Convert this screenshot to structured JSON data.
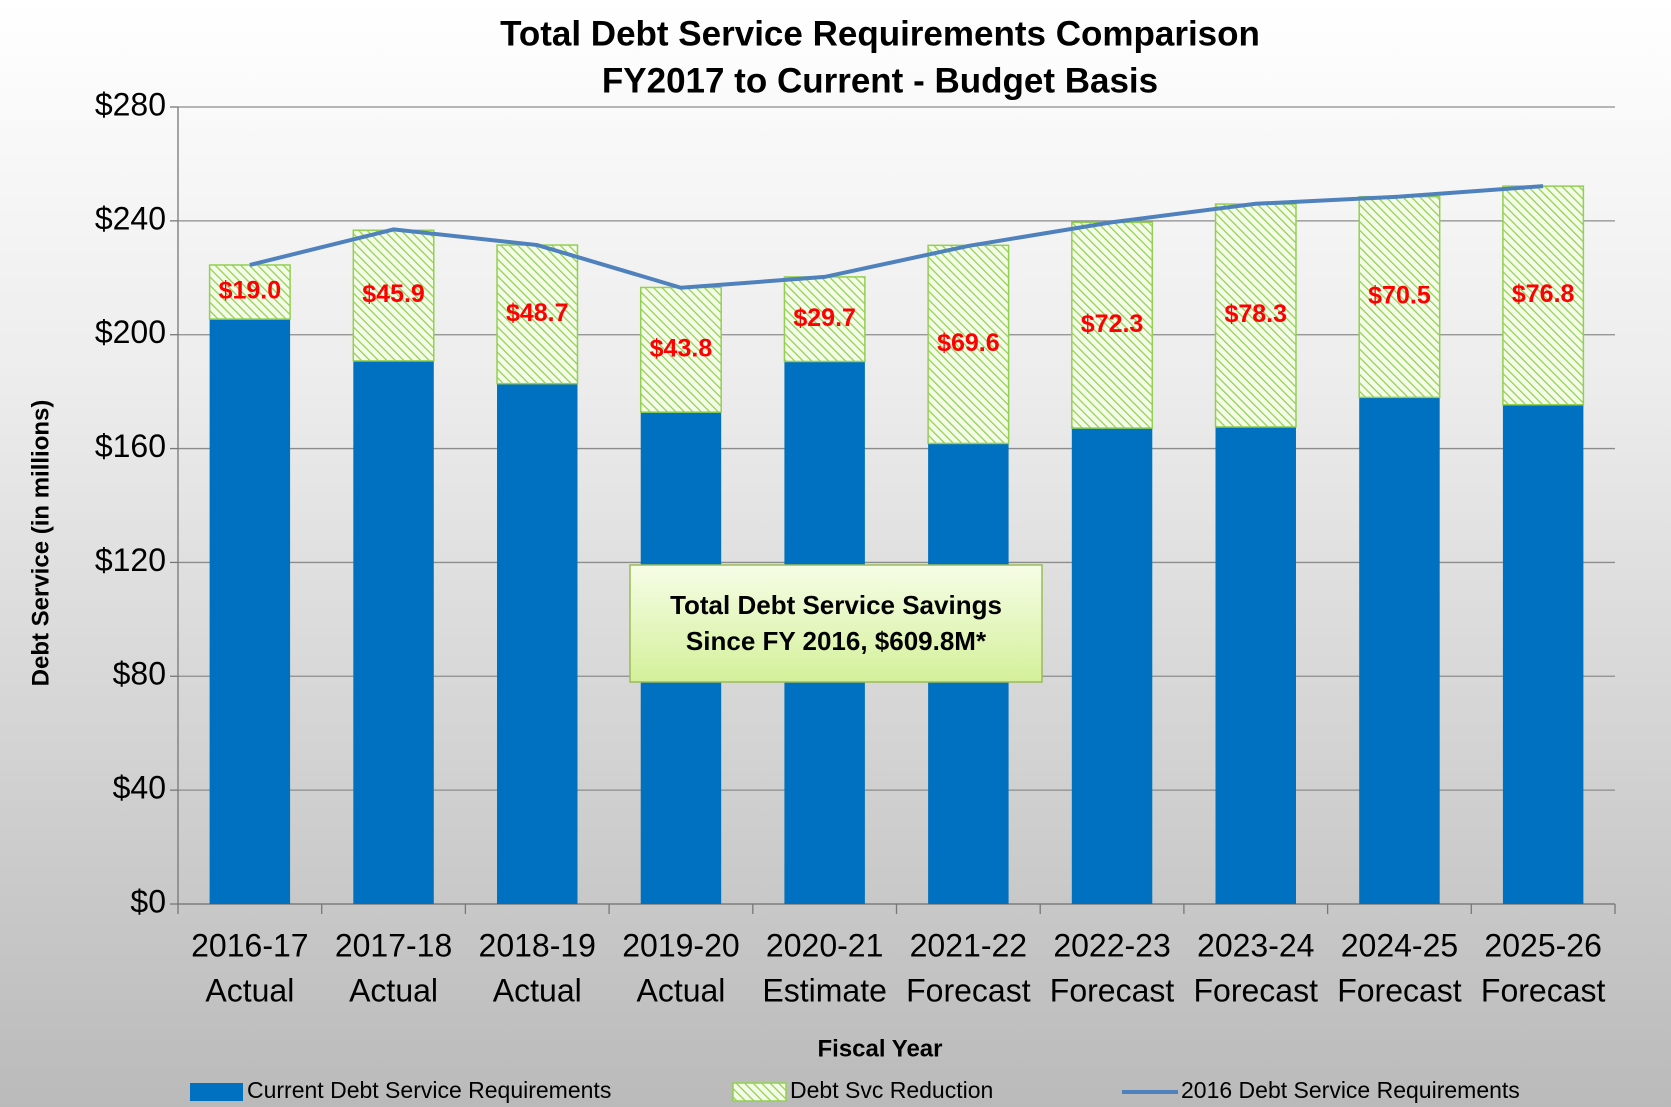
{
  "chart_data": {
    "type": "stacked-bar-line",
    "title": [
      "Total Debt Service Requirements Comparison",
      "FY2017 to Current - Budget Basis"
    ],
    "x_label": "Fiscal Year",
    "y_label": "Debt Service (in millions)",
    "categories": [
      [
        "2016-17",
        "Actual"
      ],
      [
        "2017-18",
        "Actual"
      ],
      [
        "2018-19",
        "Actual"
      ],
      [
        "2019-20",
        "Actual"
      ],
      [
        "2020-21",
        "Estimate"
      ],
      [
        "2021-22",
        "Forecast"
      ],
      [
        "2022-23",
        "Forecast"
      ],
      [
        "2023-24",
        "Forecast"
      ],
      [
        "2024-25",
        "Forecast"
      ],
      [
        "2025-26",
        "Forecast"
      ]
    ],
    "series": [
      {
        "name": "Current Debt Service Requirements",
        "color": "#0070c0",
        "kind": "bar",
        "values": [
          205.5,
          190.8,
          182.8,
          172.8,
          190.6,
          161.8,
          167.2,
          167.6,
          178,
          175.4
        ]
      },
      {
        "name": "Debt Svc Reduction",
        "color": "#92d050",
        "kind": "stack",
        "values": [
          19.0,
          45.9,
          48.7,
          43.8,
          29.7,
          69.6,
          72.3,
          78.3,
          70.5,
          76.8
        ],
        "value_labels": [
          "$19.0",
          "$45.9",
          "$48.7",
          "$43.8",
          "$29.7",
          "$69.6",
          "$72.3",
          "$78.3",
          "$70.5",
          "$76.8"
        ]
      },
      {
        "name": "2016 Debt Service Requirements",
        "color": "#4f81bd",
        "kind": "line",
        "values": [
          224.5,
          237,
          231.5,
          216.5,
          220.3,
          231.2,
          239.5,
          246,
          248.5,
          252.2
        ]
      }
    ],
    "annotation": [
      "Total Debt Service Savings",
      "Since FY 2016, $609.8M*"
    ],
    "ylim": [
      0,
      280
    ],
    "yticks": [
      {
        "value": 0,
        "label": "$0"
      },
      {
        "value": 40,
        "label": "$40"
      },
      {
        "value": 80,
        "label": "$80"
      },
      {
        "value": 120,
        "label": "$120"
      },
      {
        "value": 160,
        "label": "$160"
      },
      {
        "value": 200,
        "label": "$200"
      },
      {
        "value": 240,
        "label": "$240"
      },
      {
        "value": 280,
        "label": "$280"
      }
    ],
    "grid": true
  }
}
